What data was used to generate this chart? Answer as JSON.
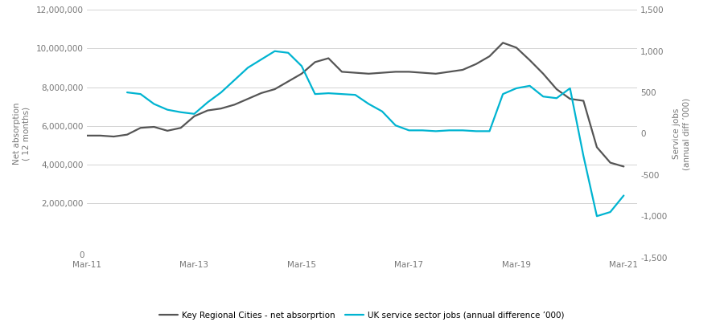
{
  "dark_line_label": "Key Regional Cities - net absorprtion",
  "cyan_line_label": "UK service sector jobs (annual difference ’000)",
  "dark_color": "#555555",
  "cyan_color": "#00b4d1",
  "background_color": "#ffffff",
  "grid_color": "#cccccc",
  "left_ylabel": "Net absorption\n( 12 months)",
  "right_ylabel": "Service jobs\n(annual diff ’000)",
  "ylim_left": [
    0,
    12000000
  ],
  "ylim_right": [
    -1500,
    1500
  ],
  "yticks_left": [
    2000000,
    4000000,
    6000000,
    8000000,
    10000000,
    12000000
  ],
  "yticks_right": [
    -1500,
    -1000,
    -500,
    0,
    500,
    1000,
    1500
  ],
  "xtick_labels": [
    "Mar-11",
    "Mar-13",
    "Mar-15",
    "Mar-17",
    "Mar-19",
    "Mar-21"
  ],
  "dark_x": [
    2011.0,
    2011.25,
    2011.5,
    2011.75,
    2012.0,
    2012.25,
    2012.5,
    2012.75,
    2013.0,
    2013.25,
    2013.5,
    2013.75,
    2014.0,
    2014.25,
    2014.5,
    2014.75,
    2015.0,
    2015.25,
    2015.5,
    2015.75,
    2016.0,
    2016.25,
    2016.5,
    2016.75,
    2017.0,
    2017.25,
    2017.5,
    2017.75,
    2018.0,
    2018.25,
    2018.5,
    2018.75,
    2019.0,
    2019.25,
    2019.5,
    2019.75,
    2020.0,
    2020.25,
    2020.5,
    2020.75,
    2021.0
  ],
  "dark_y": [
    5500000,
    5500000,
    5450000,
    5550000,
    5900000,
    5950000,
    5750000,
    5900000,
    6500000,
    6800000,
    6900000,
    7100000,
    7400000,
    7700000,
    7900000,
    8300000,
    8700000,
    9300000,
    9500000,
    8800000,
    8750000,
    8700000,
    8750000,
    8800000,
    8800000,
    8750000,
    8700000,
    8800000,
    8900000,
    9200000,
    9600000,
    10300000,
    10050000,
    9400000,
    8700000,
    7900000,
    7400000,
    7300000,
    4900000,
    4100000,
    3900000
  ],
  "cyan_x": [
    2011.75,
    2012.0,
    2012.25,
    2012.5,
    2012.75,
    2013.0,
    2013.25,
    2013.5,
    2013.75,
    2014.0,
    2014.25,
    2014.5,
    2014.75,
    2015.0,
    2015.25,
    2015.5,
    2015.75,
    2016.0,
    2016.25,
    2016.5,
    2016.75,
    2017.0,
    2017.25,
    2017.5,
    2017.75,
    2018.0,
    2018.25,
    2018.5,
    2018.75,
    2019.0,
    2019.25,
    2019.5,
    2019.75,
    2020.0,
    2020.25,
    2020.5,
    2020.75,
    2021.0
  ],
  "cyan_y": [
    500,
    480,
    360,
    290,
    260,
    240,
    380,
    500,
    650,
    800,
    900,
    1000,
    980,
    820,
    480,
    490,
    480,
    470,
    360,
    270,
    100,
    40,
    40,
    30,
    40,
    40,
    30,
    30,
    480,
    550,
    580,
    450,
    430,
    550,
    -270,
    -1000,
    -950,
    -750
  ]
}
